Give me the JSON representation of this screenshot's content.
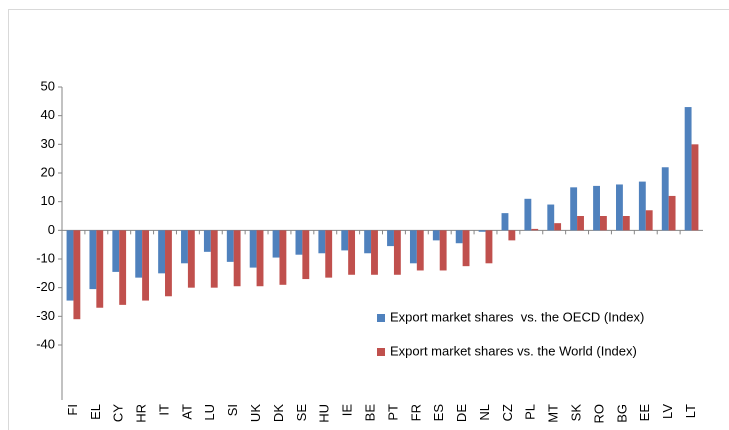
{
  "chart_data": {
    "type": "bar",
    "categories": [
      "FI",
      "EL",
      "CY",
      "HR",
      "IT",
      "AT",
      "LU",
      "SI",
      "UK",
      "DK",
      "SE",
      "HU",
      "IE",
      "BE",
      "PT",
      "FR",
      "ES",
      "DE",
      "NL",
      "CZ",
      "PL",
      "MT",
      "SK",
      "RO",
      "BG",
      "EE",
      "LV",
      "LT"
    ],
    "series": [
      {
        "name": "Export market shares  vs. the OECD (Index)",
        "color": "#4f81bd",
        "values": [
          -24.5,
          -20.5,
          -14.5,
          -16.5,
          -15,
          -11.5,
          -7.5,
          -11,
          -13,
          -9.5,
          -8.5,
          -8,
          -7,
          -8,
          -5.5,
          -11.5,
          -3.5,
          -4.5,
          -0.5,
          6,
          11,
          9,
          15,
          15.5,
          16,
          17,
          22,
          43
        ]
      },
      {
        "name": "Export market shares vs. the World (Index)",
        "color": "#c0504d",
        "values": [
          -31,
          -27,
          -26,
          -24.5,
          -23,
          -20,
          -20,
          -19.5,
          -19.5,
          -19,
          -17,
          -16.5,
          -15.5,
          -15.5,
          -15.5,
          -14,
          -14,
          -12.5,
          -11.5,
          -3.5,
          0.5,
          2.5,
          5,
          5,
          5,
          7,
          12,
          30
        ]
      }
    ],
    "ylim": [
      -40,
      50
    ],
    "yticks": [
      -40,
      -30,
      -20,
      -10,
      0,
      10,
      20,
      30,
      40,
      50
    ],
    "grid": false,
    "legend_position": "right"
  }
}
